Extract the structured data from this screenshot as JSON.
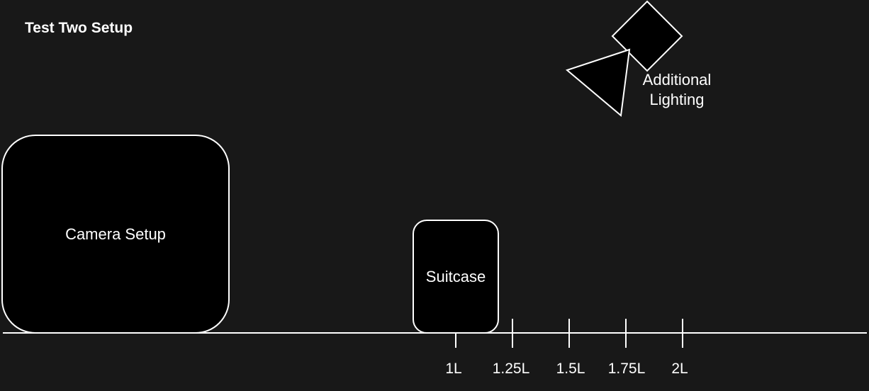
{
  "diagram": {
    "title": "Test Two Setup",
    "camera": {
      "label": "Camera Setup"
    },
    "suitcase": {
      "label": "Suitcase"
    },
    "lighting": {
      "label_line1": "Additional",
      "label_line2": "Lighting"
    },
    "scale": {
      "ticks": [
        "1L",
        "1.25L",
        "1.5L",
        "1.75L",
        "2L"
      ]
    }
  },
  "colors": {
    "background": "#181818",
    "shape_fill": "#000000",
    "stroke": "#ffffff",
    "text": "#ffffff"
  }
}
